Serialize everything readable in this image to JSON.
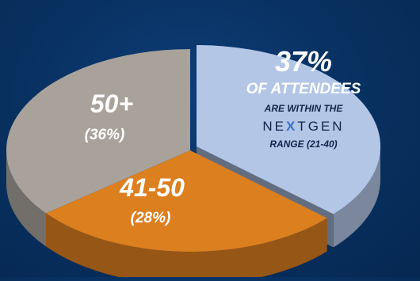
{
  "chart_data": {
    "type": "pie",
    "categories": [
      "21-40",
      "41-50",
      "50+"
    ],
    "values": [
      37,
      28,
      36
    ],
    "colors": {
      "21-40": "#b3c6e6",
      "41-50": "#dc7f1f",
      "50+": "#a8a29b"
    }
  },
  "labels": {
    "nextgen": {
      "percent": "37%",
      "line1": "OF ATTENDEES",
      "line2": "ARE WITHIN THE",
      "brand_ne": "NE",
      "brand_x": "X",
      "brand_t": "T",
      "brand_gen": "GEN",
      "line4": "RANGE (21-40)"
    },
    "mid": {
      "title": "41-50",
      "pct": "(28%)"
    },
    "senior": {
      "title": "50+",
      "pct": "(36%)"
    }
  }
}
